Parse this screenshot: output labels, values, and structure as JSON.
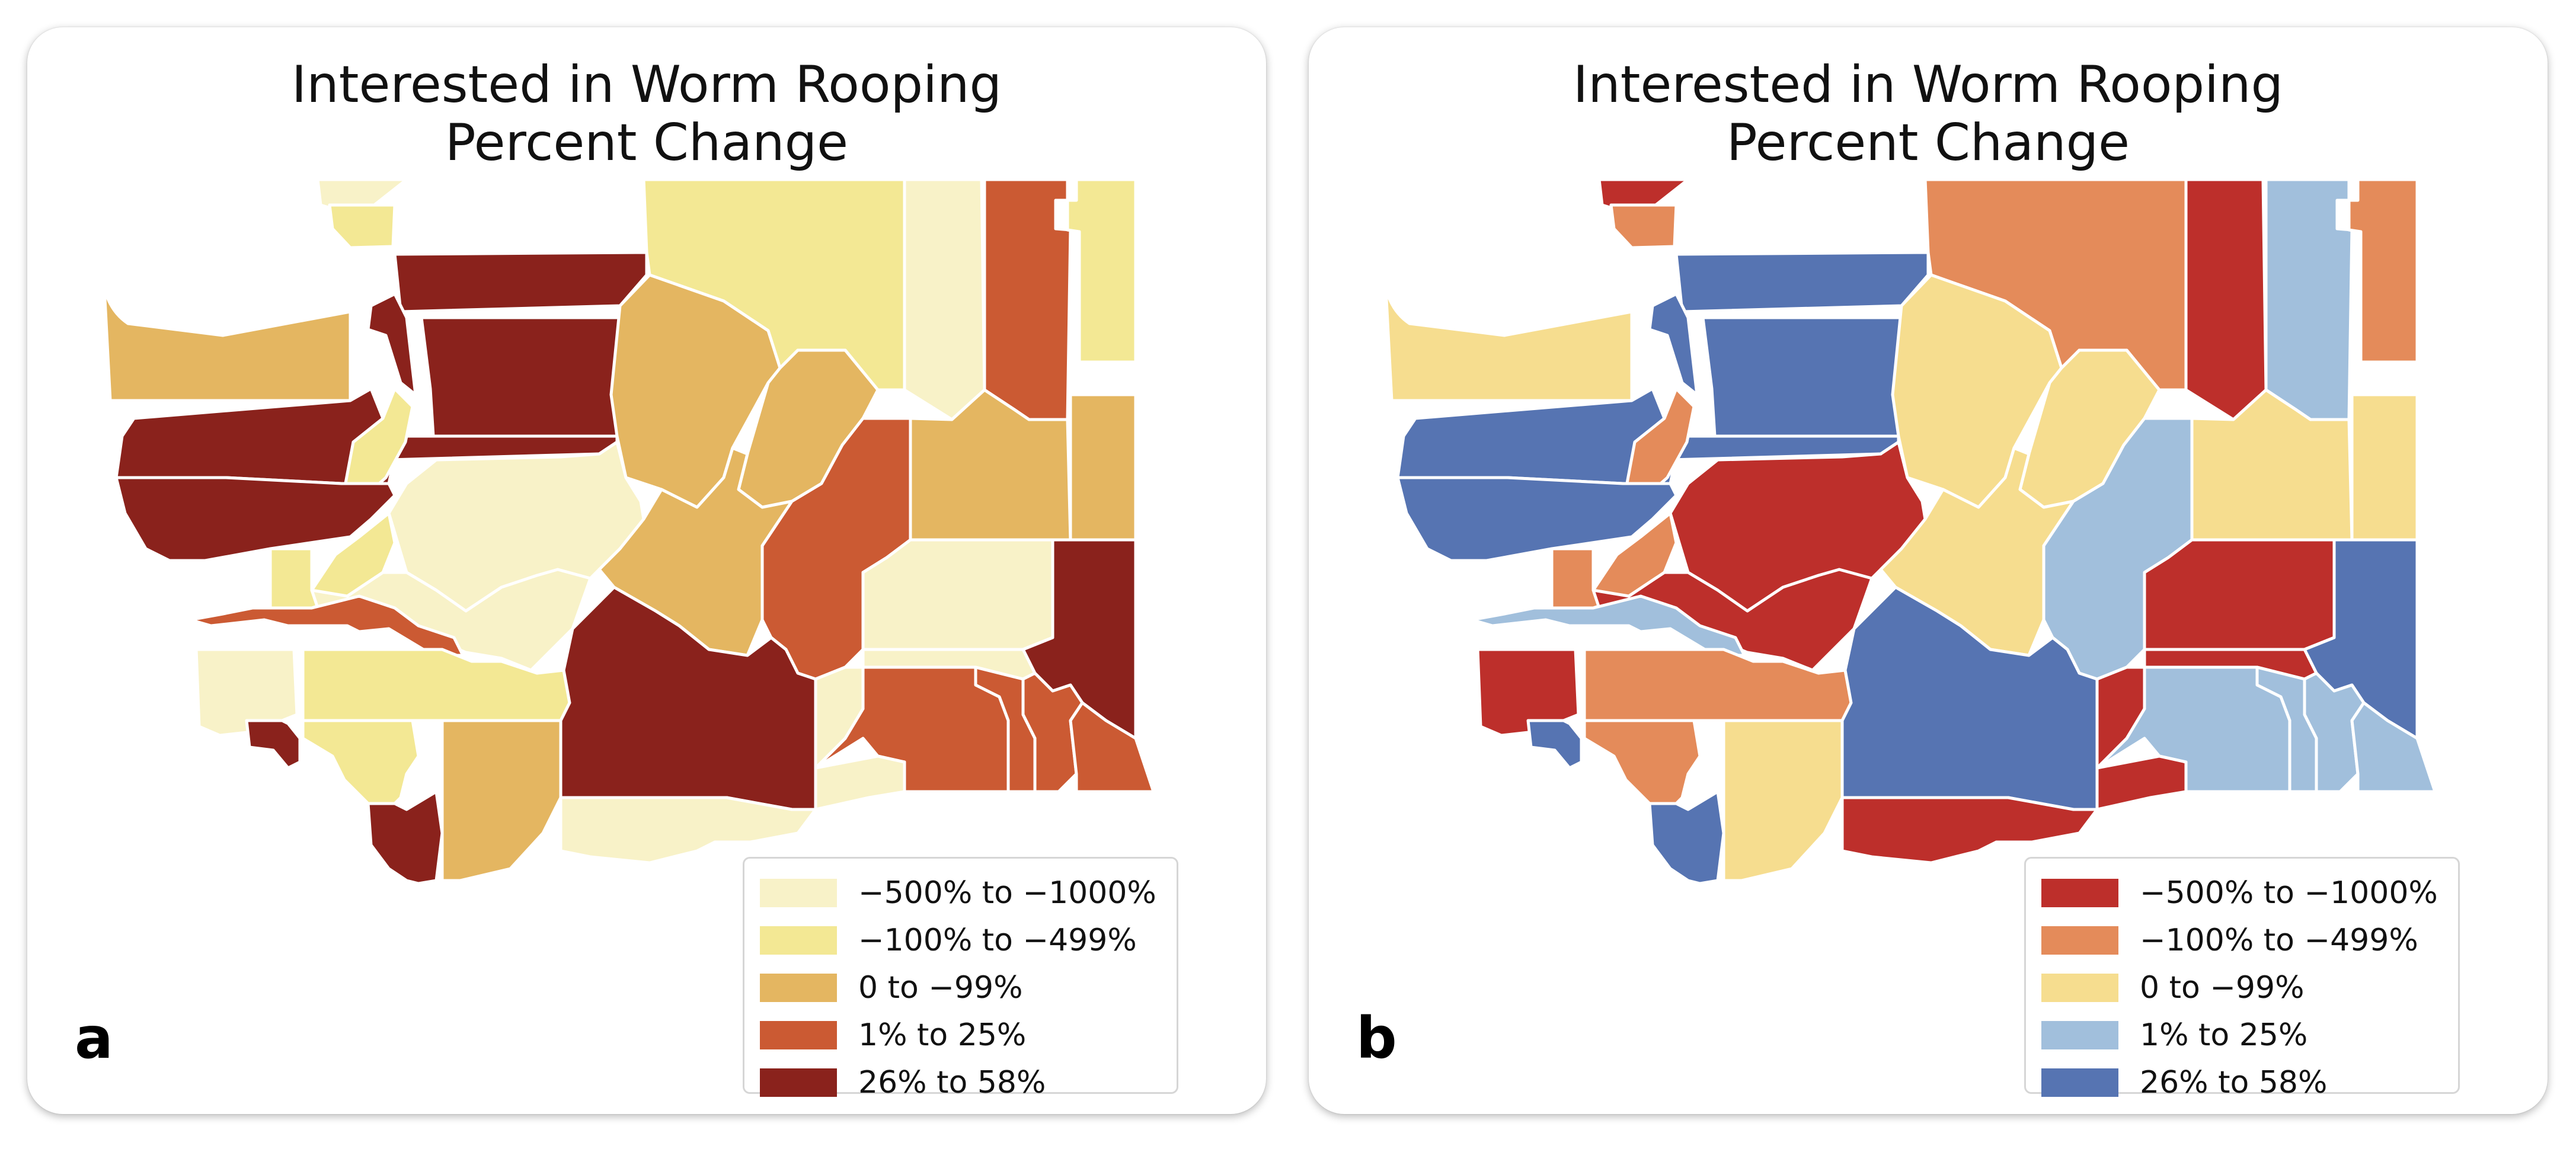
{
  "panels": [
    {
      "id": "a",
      "label": "a",
      "title_line1": "Interested in Worm Rooping",
      "title_line2": "Percent Change",
      "palette": [
        "#f8f2c8",
        "#f3e894",
        "#e4b661",
        "#cb5a33",
        "#8a221c"
      ],
      "legend": [
        {
          "label": "−500% to −1000%",
          "color": "#f8f2c8"
        },
        {
          "label": "−100% to −499%",
          "color": "#f3e894"
        },
        {
          "label": "0 to −99%",
          "color": "#e4b661"
        },
        {
          "label": "1% to 25%",
          "color": "#cb5a33"
        },
        {
          "label": "26% to 58%",
          "color": "#8a221c"
        }
      ]
    },
    {
      "id": "b",
      "label": "b",
      "title_line1": "Interested in Worm Rooping",
      "title_line2": "Percent Change",
      "palette": [
        "#bd2f2b",
        "#e48b5a",
        "#f6dd8f",
        "#a1bfdc",
        "#5674b2"
      ],
      "legend": [
        {
          "label": "−500% to −1000%",
          "color": "#bd2f2b"
        },
        {
          "label": "−100% to −499%",
          "color": "#e48b5a"
        },
        {
          "label": "0 to −99%",
          "color": "#f6dd8f"
        },
        {
          "label": "1% to 25%",
          "color": "#a1bfdc"
        },
        {
          "label": "26% to 58%",
          "color": "#5674b2"
        }
      ]
    }
  ],
  "county_classes": {
    "whatcom-west": 0,
    "san-juan": 1,
    "whatcom": 4,
    "okanogan": 1,
    "ferry": 0,
    "stevens": 3,
    "pend-oreille": 1,
    "clallam": 2,
    "island": 4,
    "skagit": 4,
    "jefferson": 4,
    "snohomish": 4,
    "kitsap": 1,
    "chelan": 2,
    "douglas": 2,
    "lincoln": 2,
    "spokane": 2,
    "grays-harbor": 4,
    "mason": 1,
    "king": 0,
    "pierce": 0,
    "kittitas": 2,
    "grant": 3,
    "adams": 0,
    "whitman": 4,
    "thurston": 3,
    "pacific": 0,
    "lewis": 1,
    "yakima": 4,
    "franklin": 0,
    "garfield": 3,
    "columbia": 3,
    "asotin": 3,
    "walla-walla": 3,
    "benton": 0,
    "wahkiakum": 4,
    "cowlitz": 1,
    "skamania": 2,
    "klickitat": 0,
    "clark": 4
  }
}
